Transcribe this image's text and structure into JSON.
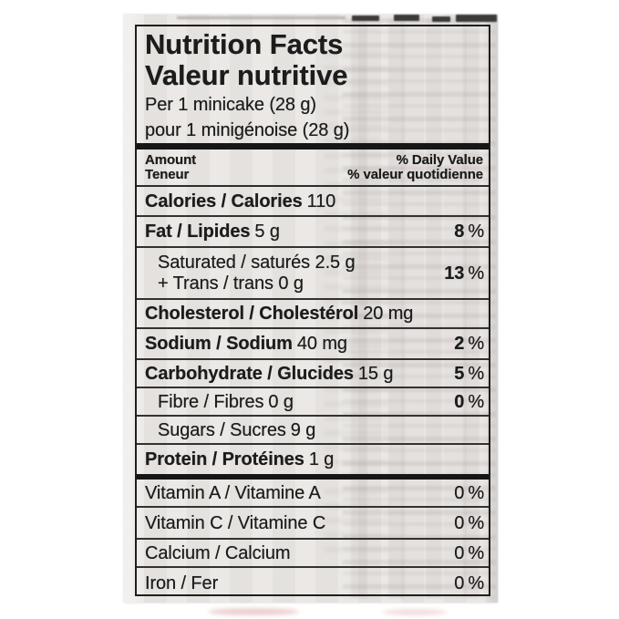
{
  "label": {
    "title_en": "Nutrition Facts",
    "title_fr": "Valeur nutritive",
    "serving_en": "Per 1 minicake (28 g)",
    "serving_fr": "pour 1 minigénoise (28 g)",
    "header": {
      "amount_en": "Amount",
      "amount_fr": "Teneur",
      "daily_value_en": "% Daily Value",
      "daily_value_fr": "% valeur quotidienne"
    },
    "pct": "%",
    "rows": [
      {
        "label": "Calories / Calories",
        "value": "110",
        "dv": ""
      },
      {
        "label": "Fat / Lipides",
        "value": "5 g",
        "dv": "8"
      },
      {
        "line1": "Saturated / saturés 2.5 g",
        "line2": "+ Trans / trans 0 g",
        "dv": "13"
      },
      {
        "label": "Cholesterol / Cholestérol",
        "value": "20 mg",
        "dv": ""
      },
      {
        "label": "Sodium / Sodium",
        "value": "40 mg",
        "dv": "2"
      },
      {
        "label": "Carbohydrate / Glucides",
        "value": "15 g",
        "dv": "5"
      },
      {
        "label": "Fibre / Fibres",
        "value": "0 g",
        "dv": "0"
      },
      {
        "label": "Sugars / Sucres",
        "value": "9 g",
        "dv": ""
      },
      {
        "label": "Protein / Protéines",
        "value": "1 g",
        "dv": ""
      }
    ],
    "vitamins": [
      {
        "label": "Vitamin A / Vitamine A",
        "dv": "0"
      },
      {
        "label": "Vitamin C / Vitamine C",
        "dv": "0"
      },
      {
        "label": "Calcium / Calcium",
        "dv": "0"
      },
      {
        "label": "Iron / Fer",
        "dv": "0"
      }
    ],
    "colors": {
      "ink": "#1c1c1c",
      "label_background": "#e9e6e3",
      "page_background": "#ffffff"
    }
  }
}
